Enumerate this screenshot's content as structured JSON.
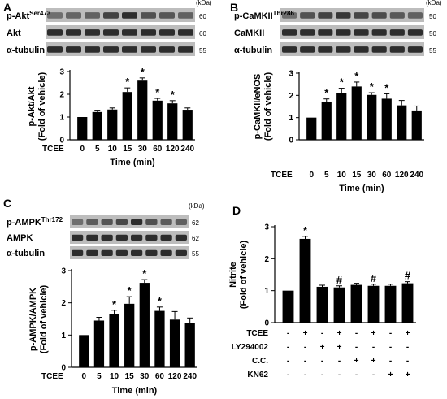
{
  "chart_data": [
    {
      "panel": "A",
      "type": "bar",
      "blots": [
        {
          "label": "p-Akt",
          "sup": "Ser473",
          "kda": "60"
        },
        {
          "label": "Akt",
          "sup": "",
          "kda": "60"
        },
        {
          "label": "α-tubulin",
          "sup": "",
          "kda": "55"
        }
      ],
      "kda_unit": "(kDa)",
      "categories": [
        "0",
        "5",
        "10",
        "15",
        "30",
        "60",
        "120",
        "240"
      ],
      "values": [
        1.0,
        1.22,
        1.33,
        2.1,
        2.6,
        1.72,
        1.6,
        1.32
      ],
      "errors": [
        0.0,
        0.08,
        0.07,
        0.18,
        0.12,
        0.1,
        0.12,
        0.08
      ],
      "significance": [
        "",
        "",
        "",
        "*",
        "*",
        "*",
        "*",
        ""
      ],
      "ylabel_line1": "p-Akt/Akt",
      "ylabel_line2": "(Fold of vehicle)",
      "row_label": "TCEE",
      "xlabel": "Time (min)",
      "ylim": [
        0,
        3
      ],
      "yticks": [
        "0",
        "1",
        "2",
        "3"
      ]
    },
    {
      "panel": "B",
      "type": "bar",
      "blots": [
        {
          "label": "p-CaMKII",
          "sup": "Thr286",
          "kda": "50"
        },
        {
          "label": "CaMKII",
          "sup": "",
          "kda": "50"
        },
        {
          "label": "α-tubulin",
          "sup": "",
          "kda": "55"
        }
      ],
      "kda_unit": "(kDa)",
      "categories": [
        "0",
        "5",
        "10",
        "15",
        "30",
        "60",
        "120",
        "240"
      ],
      "values": [
        1.0,
        1.72,
        2.1,
        2.4,
        2.02,
        1.85,
        1.55,
        1.32
      ],
      "errors": [
        0.0,
        0.12,
        0.22,
        0.2,
        0.1,
        0.22,
        0.22,
        0.2
      ],
      "significance": [
        "",
        "*",
        "*",
        "*",
        "*",
        "*",
        "",
        ""
      ],
      "ylabel_line1": "p-CaMKII/eNOS",
      "ylabel_line2": "(Fold of vehicle)",
      "row_label": "TCEE",
      "xlabel": "Time (min)",
      "ylim": [
        0,
        3
      ],
      "yticks": [
        "0",
        "1",
        "2",
        "3"
      ]
    },
    {
      "panel": "C",
      "type": "bar",
      "blots": [
        {
          "label": "p-AMPK",
          "sup": "Thr172",
          "kda": "62"
        },
        {
          "label": "AMPK",
          "sup": "",
          "kda": "62"
        },
        {
          "label": "α-tubulin",
          "sup": "",
          "kda": "55"
        }
      ],
      "kda_unit": "(kDa)",
      "categories": [
        "0",
        "5",
        "10",
        "15",
        "30",
        "60",
        "120",
        "240"
      ],
      "values": [
        1.0,
        1.45,
        1.65,
        1.97,
        2.62,
        1.75,
        1.48,
        1.38
      ],
      "errors": [
        0.0,
        0.1,
        0.12,
        0.22,
        0.1,
        0.12,
        0.25,
        0.15
      ],
      "significance": [
        "",
        "",
        "*",
        "*",
        "*",
        "*",
        "",
        ""
      ],
      "ylabel_line1": "p-AMPK/AMPK",
      "ylabel_line2": "(Fold of vehicle)",
      "row_label": "TCEE",
      "xlabel": "Time (min)",
      "ylim": [
        0,
        3
      ],
      "yticks": [
        "0",
        "1",
        "2",
        "3"
      ]
    },
    {
      "panel": "D",
      "type": "bar",
      "values": [
        1.0,
        2.62,
        1.12,
        1.1,
        1.18,
        1.15,
        1.15,
        1.23
      ],
      "errors": [
        0.0,
        0.08,
        0.05,
        0.05,
        0.05,
        0.05,
        0.05,
        0.05
      ],
      "significance": [
        "",
        "*",
        "",
        "#",
        "",
        "#",
        "",
        "#"
      ],
      "ylabel_line1": "Nitrite",
      "ylabel_line2": "(Fold of vehicle)",
      "ylim": [
        0,
        3
      ],
      "yticks": [
        "0",
        "1",
        "2",
        "3"
      ],
      "treatments": [
        {
          "label": "TCEE",
          "signs": [
            "-",
            "+",
            "-",
            "+",
            "-",
            "+",
            "-",
            "+"
          ]
        },
        {
          "label": "LY294002",
          "signs": [
            "-",
            "-",
            "+",
            "+",
            "-",
            "-",
            "-",
            "-"
          ]
        },
        {
          "label": "C.C.",
          "signs": [
            "-",
            "-",
            "-",
            "-",
            "+",
            "+",
            "-",
            "-"
          ]
        },
        {
          "label": "KN62",
          "signs": [
            "-",
            "-",
            "-",
            "-",
            "-",
            "-",
            "+",
            "+"
          ]
        }
      ]
    }
  ]
}
